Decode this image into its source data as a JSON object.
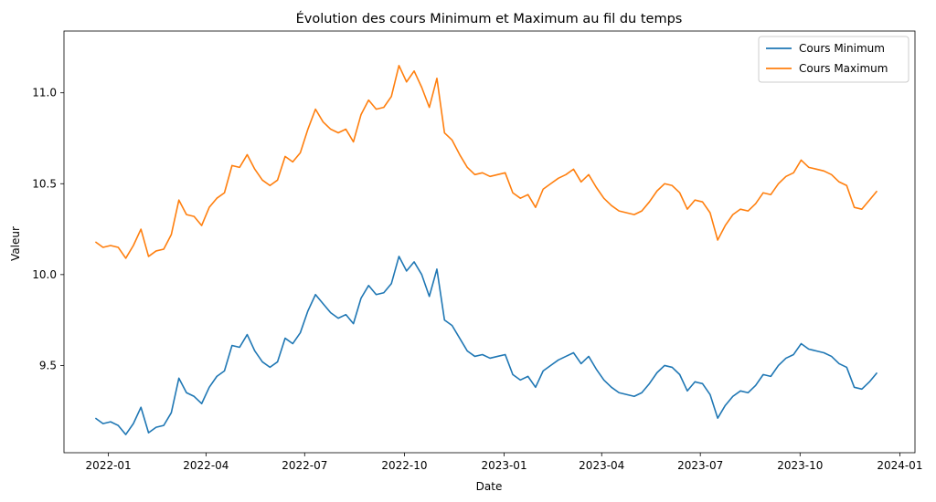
{
  "chart_data": {
    "type": "line",
    "title": "Évolution des cours Minimum et Maximum au fil du temps",
    "xlabel": "Date",
    "ylabel": "Valeur",
    "xlim": [
      "2021-11-21",
      "2024-01-15"
    ],
    "ylim": [
      9.02,
      11.34
    ],
    "x_ticks": [
      "2022-01",
      "2022-04",
      "2022-07",
      "2022-10",
      "2023-01",
      "2023-04",
      "2023-07",
      "2023-10",
      "2024-01"
    ],
    "y_ticks": [
      "9.5",
      "10.0",
      "10.5",
      "11.0"
    ],
    "grid": false,
    "legend_position": "top-right",
    "series": [
      {
        "name": "Cours Minimum",
        "color": "#1f77b4",
        "points": [
          [
            "2021-12-20",
            9.21
          ],
          [
            "2021-12-27",
            9.18
          ],
          [
            "2022-01-03",
            9.19
          ],
          [
            "2022-01-10",
            9.17
          ],
          [
            "2022-01-17",
            9.12
          ],
          [
            "2022-01-24",
            9.18
          ],
          [
            "2022-01-31",
            9.27
          ],
          [
            "2022-02-07",
            9.13
          ],
          [
            "2022-02-14",
            9.16
          ],
          [
            "2022-02-21",
            9.17
          ],
          [
            "2022-02-28",
            9.24
          ],
          [
            "2022-03-07",
            9.43
          ],
          [
            "2022-03-14",
            9.35
          ],
          [
            "2022-03-21",
            9.33
          ],
          [
            "2022-03-28",
            9.29
          ],
          [
            "2022-04-04",
            9.38
          ],
          [
            "2022-04-11",
            9.44
          ],
          [
            "2022-04-18",
            9.47
          ],
          [
            "2022-04-25",
            9.61
          ],
          [
            "2022-05-02",
            9.6
          ],
          [
            "2022-05-09",
            9.67
          ],
          [
            "2022-05-16",
            9.58
          ],
          [
            "2022-05-23",
            9.52
          ],
          [
            "2022-05-30",
            9.49
          ],
          [
            "2022-06-06",
            9.52
          ],
          [
            "2022-06-13",
            9.65
          ],
          [
            "2022-06-20",
            9.62
          ],
          [
            "2022-06-27",
            9.68
          ],
          [
            "2022-07-04",
            9.8
          ],
          [
            "2022-07-11",
            9.89
          ],
          [
            "2022-07-18",
            9.84
          ],
          [
            "2022-07-25",
            9.79
          ],
          [
            "2022-08-01",
            9.76
          ],
          [
            "2022-08-08",
            9.78
          ],
          [
            "2022-08-15",
            9.73
          ],
          [
            "2022-08-22",
            9.87
          ],
          [
            "2022-08-29",
            9.94
          ],
          [
            "2022-09-05",
            9.89
          ],
          [
            "2022-09-12",
            9.9
          ],
          [
            "2022-09-19",
            9.95
          ],
          [
            "2022-09-26",
            10.1
          ],
          [
            "2022-10-03",
            10.02
          ],
          [
            "2022-10-10",
            10.07
          ],
          [
            "2022-10-17",
            10.0
          ],
          [
            "2022-10-24",
            9.88
          ],
          [
            "2022-10-31",
            10.03
          ],
          [
            "2022-11-07",
            9.75
          ],
          [
            "2022-11-14",
            9.72
          ],
          [
            "2022-11-21",
            9.65
          ],
          [
            "2022-11-28",
            9.58
          ],
          [
            "2022-12-05",
            9.55
          ],
          [
            "2022-12-12",
            9.56
          ],
          [
            "2022-12-19",
            9.54
          ],
          [
            "2022-12-26",
            9.55
          ],
          [
            "2023-01-02",
            9.56
          ],
          [
            "2023-01-09",
            9.45
          ],
          [
            "2023-01-16",
            9.42
          ],
          [
            "2023-01-23",
            9.44
          ],
          [
            "2023-01-30",
            9.38
          ],
          [
            "2023-02-06",
            9.47
          ],
          [
            "2023-02-13",
            9.5
          ],
          [
            "2023-02-20",
            9.53
          ],
          [
            "2023-02-27",
            9.55
          ],
          [
            "2023-03-06",
            9.57
          ],
          [
            "2023-03-13",
            9.51
          ],
          [
            "2023-03-20",
            9.55
          ],
          [
            "2023-03-27",
            9.48
          ],
          [
            "2023-04-03",
            9.42
          ],
          [
            "2023-04-10",
            9.38
          ],
          [
            "2023-04-17",
            9.35
          ],
          [
            "2023-04-24",
            9.34
          ],
          [
            "2023-05-01",
            9.33
          ],
          [
            "2023-05-08",
            9.35
          ],
          [
            "2023-05-15",
            9.4
          ],
          [
            "2023-05-22",
            9.46
          ],
          [
            "2023-05-29",
            9.5
          ],
          [
            "2023-06-05",
            9.49
          ],
          [
            "2023-06-12",
            9.45
          ],
          [
            "2023-06-19",
            9.36
          ],
          [
            "2023-06-26",
            9.41
          ],
          [
            "2023-07-03",
            9.4
          ],
          [
            "2023-07-10",
            9.34
          ],
          [
            "2023-07-17",
            9.21
          ],
          [
            "2023-07-24",
            9.28
          ],
          [
            "2023-07-31",
            9.33
          ],
          [
            "2023-08-07",
            9.36
          ],
          [
            "2023-08-14",
            9.35
          ],
          [
            "2023-08-21",
            9.39
          ],
          [
            "2023-08-28",
            9.45
          ],
          [
            "2023-09-04",
            9.44
          ],
          [
            "2023-09-11",
            9.5
          ],
          [
            "2023-09-18",
            9.54
          ],
          [
            "2023-09-25",
            9.56
          ],
          [
            "2023-10-02",
            9.62
          ],
          [
            "2023-10-09",
            9.59
          ],
          [
            "2023-10-16",
            9.58
          ],
          [
            "2023-10-23",
            9.57
          ],
          [
            "2023-10-30",
            9.55
          ],
          [
            "2023-11-06",
            9.51
          ],
          [
            "2023-11-13",
            9.49
          ],
          [
            "2023-11-20",
            9.38
          ],
          [
            "2023-11-27",
            9.37
          ],
          [
            "2023-12-04",
            9.41
          ],
          [
            "2023-12-11",
            9.46
          ]
        ]
      },
      {
        "name": "Cours Maximum",
        "color": "#ff7f0e",
        "points": [
          [
            "2021-12-20",
            10.18
          ],
          [
            "2021-12-27",
            10.15
          ],
          [
            "2022-01-03",
            10.16
          ],
          [
            "2022-01-10",
            10.15
          ],
          [
            "2022-01-17",
            10.09
          ],
          [
            "2022-01-24",
            10.16
          ],
          [
            "2022-01-31",
            10.25
          ],
          [
            "2022-02-07",
            10.1
          ],
          [
            "2022-02-14",
            10.13
          ],
          [
            "2022-02-21",
            10.14
          ],
          [
            "2022-02-28",
            10.22
          ],
          [
            "2022-03-07",
            10.41
          ],
          [
            "2022-03-14",
            10.33
          ],
          [
            "2022-03-21",
            10.32
          ],
          [
            "2022-03-28",
            10.27
          ],
          [
            "2022-04-04",
            10.37
          ],
          [
            "2022-04-11",
            10.42
          ],
          [
            "2022-04-18",
            10.45
          ],
          [
            "2022-04-25",
            10.6
          ],
          [
            "2022-05-02",
            10.59
          ],
          [
            "2022-05-09",
            10.66
          ],
          [
            "2022-05-16",
            10.58
          ],
          [
            "2022-05-23",
            10.52
          ],
          [
            "2022-05-30",
            10.49
          ],
          [
            "2022-06-06",
            10.52
          ],
          [
            "2022-06-13",
            10.65
          ],
          [
            "2022-06-20",
            10.62
          ],
          [
            "2022-06-27",
            10.67
          ],
          [
            "2022-07-04",
            10.8
          ],
          [
            "2022-07-11",
            10.91
          ],
          [
            "2022-07-18",
            10.84
          ],
          [
            "2022-07-25",
            10.8
          ],
          [
            "2022-08-01",
            10.78
          ],
          [
            "2022-08-08",
            10.8
          ],
          [
            "2022-08-15",
            10.73
          ],
          [
            "2022-08-22",
            10.88
          ],
          [
            "2022-08-29",
            10.96
          ],
          [
            "2022-09-05",
            10.91
          ],
          [
            "2022-09-12",
            10.92
          ],
          [
            "2022-09-19",
            10.98
          ],
          [
            "2022-09-26",
            11.15
          ],
          [
            "2022-10-03",
            11.06
          ],
          [
            "2022-10-10",
            11.12
          ],
          [
            "2022-10-17",
            11.03
          ],
          [
            "2022-10-24",
            10.92
          ],
          [
            "2022-10-31",
            11.08
          ],
          [
            "2022-11-07",
            10.78
          ],
          [
            "2022-11-14",
            10.74
          ],
          [
            "2022-11-21",
            10.66
          ],
          [
            "2022-11-28",
            10.59
          ],
          [
            "2022-12-05",
            10.55
          ],
          [
            "2022-12-12",
            10.56
          ],
          [
            "2022-12-19",
            10.54
          ],
          [
            "2022-12-26",
            10.55
          ],
          [
            "2023-01-02",
            10.56
          ],
          [
            "2023-01-09",
            10.45
          ],
          [
            "2023-01-16",
            10.42
          ],
          [
            "2023-01-23",
            10.44
          ],
          [
            "2023-01-30",
            10.37
          ],
          [
            "2023-02-06",
            10.47
          ],
          [
            "2023-02-13",
            10.5
          ],
          [
            "2023-02-20",
            10.53
          ],
          [
            "2023-02-27",
            10.55
          ],
          [
            "2023-03-06",
            10.58
          ],
          [
            "2023-03-13",
            10.51
          ],
          [
            "2023-03-20",
            10.55
          ],
          [
            "2023-03-27",
            10.48
          ],
          [
            "2023-04-03",
            10.42
          ],
          [
            "2023-04-10",
            10.38
          ],
          [
            "2023-04-17",
            10.35
          ],
          [
            "2023-04-24",
            10.34
          ],
          [
            "2023-05-01",
            10.33
          ],
          [
            "2023-05-08",
            10.35
          ],
          [
            "2023-05-15",
            10.4
          ],
          [
            "2023-05-22",
            10.46
          ],
          [
            "2023-05-29",
            10.5
          ],
          [
            "2023-06-05",
            10.49
          ],
          [
            "2023-06-12",
            10.45
          ],
          [
            "2023-06-19",
            10.36
          ],
          [
            "2023-06-26",
            10.41
          ],
          [
            "2023-07-03",
            10.4
          ],
          [
            "2023-07-10",
            10.34
          ],
          [
            "2023-07-17",
            10.19
          ],
          [
            "2023-07-24",
            10.27
          ],
          [
            "2023-07-31",
            10.33
          ],
          [
            "2023-08-07",
            10.36
          ],
          [
            "2023-08-14",
            10.35
          ],
          [
            "2023-08-21",
            10.39
          ],
          [
            "2023-08-28",
            10.45
          ],
          [
            "2023-09-04",
            10.44
          ],
          [
            "2023-09-11",
            10.5
          ],
          [
            "2023-09-18",
            10.54
          ],
          [
            "2023-09-25",
            10.56
          ],
          [
            "2023-10-02",
            10.63
          ],
          [
            "2023-10-09",
            10.59
          ],
          [
            "2023-10-16",
            10.58
          ],
          [
            "2023-10-23",
            10.57
          ],
          [
            "2023-10-30",
            10.55
          ],
          [
            "2023-11-06",
            10.51
          ],
          [
            "2023-11-13",
            10.49
          ],
          [
            "2023-11-20",
            10.37
          ],
          [
            "2023-11-27",
            10.36
          ],
          [
            "2023-12-04",
            10.41
          ],
          [
            "2023-12-11",
            10.46
          ]
        ]
      }
    ]
  }
}
